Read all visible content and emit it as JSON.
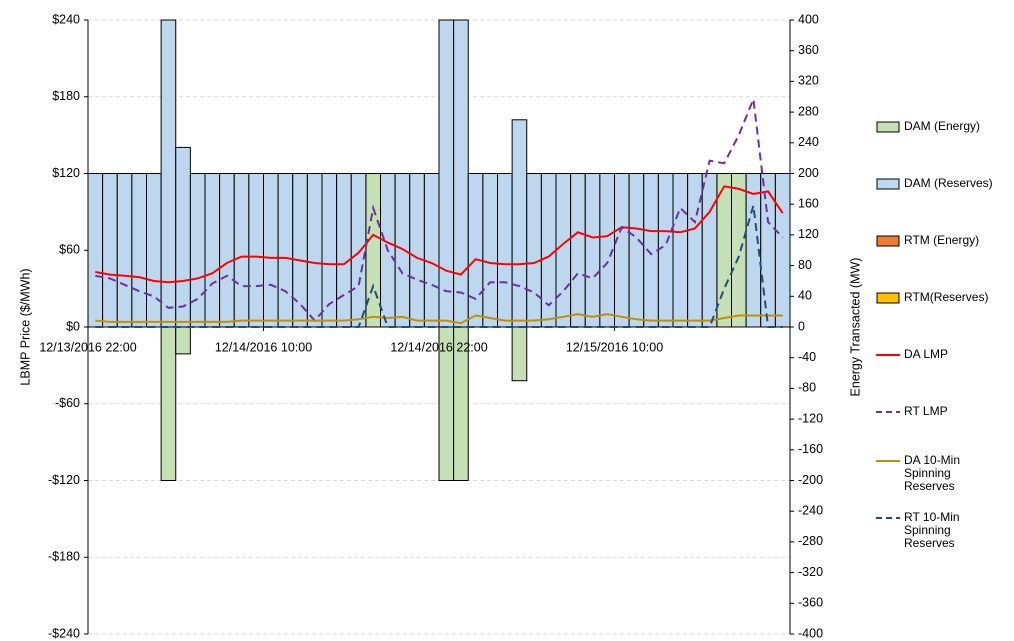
{
  "chart_data": {
    "type": "combo",
    "y_label": "LBMP Price ($/MWh)",
    "y2_label": "Energy Transacted (MW)",
    "categories": [
      "12/13/2016 22:00",
      null,
      null,
      null,
      null,
      null,
      null,
      null,
      null,
      null,
      null,
      null,
      "12/14/2016 10:00",
      null,
      null,
      null,
      null,
      null,
      null,
      null,
      null,
      null,
      null,
      null,
      "12/14/2016 22:00",
      null,
      null,
      null,
      null,
      null,
      null,
      null,
      null,
      null,
      null,
      null,
      "12/15/2016 10:00",
      null,
      null,
      null,
      null,
      null,
      null,
      null,
      null,
      null,
      null,
      null
    ],
    "ylim": [
      -240,
      240
    ],
    "yticks": [
      {
        "value": -240,
        "label": "-$240"
      },
      {
        "value": -180,
        "label": "-$180"
      },
      {
        "value": -120,
        "label": "-$120"
      },
      {
        "value": -60,
        "label": "-$60"
      },
      {
        "value": 0,
        "label": "$0"
      },
      {
        "value": 60,
        "label": "$60"
      },
      {
        "value": 120,
        "label": "$120"
      },
      {
        "value": 180,
        "label": "$180"
      },
      {
        "value": 240,
        "label": "$240"
      }
    ],
    "y2lim": [
      -400,
      400
    ],
    "y2ticks": [
      -400,
      -360,
      -320,
      -280,
      -240,
      -200,
      -160,
      -120,
      -80,
      -40,
      0,
      40,
      80,
      120,
      160,
      200,
      240,
      280,
      320,
      360,
      400
    ],
    "grid": true,
    "series": [
      {
        "name": "DAM (Energy)",
        "type": "bar",
        "axis": "y2",
        "color": "#c5e0b4",
        "values": [
          0,
          0,
          0,
          0,
          0,
          -200,
          -35,
          0,
          0,
          0,
          0,
          0,
          0,
          0,
          0,
          0,
          0,
          0,
          0,
          200,
          0,
          0,
          0,
          0,
          -200,
          -200,
          0,
          0,
          0,
          -70,
          0,
          0,
          0,
          0,
          0,
          0,
          0,
          0,
          0,
          0,
          0,
          0,
          0,
          200,
          200,
          0,
          0,
          0
        ]
      },
      {
        "name": "DAM (Reserves)",
        "type": "bar",
        "axis": "y2",
        "color": "#bdd7ee",
        "values": [
          200,
          200,
          200,
          200,
          200,
          400,
          234,
          200,
          200,
          200,
          200,
          200,
          200,
          200,
          200,
          200,
          200,
          200,
          200,
          0,
          200,
          200,
          200,
          200,
          400,
          400,
          200,
          200,
          200,
          270,
          200,
          200,
          200,
          200,
          200,
          200,
          200,
          200,
          200,
          200,
          200,
          200,
          200,
          0,
          0,
          200,
          200,
          200
        ]
      },
      {
        "name": "RTM (Energy)",
        "type": "bar",
        "axis": "y2",
        "color": "#ed7d31",
        "values": [
          0,
          0,
          0,
          0,
          0,
          0,
          0,
          0,
          0,
          0,
          0,
          0,
          0,
          0,
          0,
          0,
          0,
          0,
          0,
          0,
          0,
          0,
          0,
          0,
          0,
          0,
          0,
          0,
          0,
          0,
          0,
          0,
          0,
          0,
          0,
          0,
          0,
          0,
          0,
          0,
          0,
          0,
          0,
          0,
          0,
          0,
          0,
          0
        ]
      },
      {
        "name": "RTM(Reserves)",
        "type": "bar",
        "axis": "y2",
        "color": "#ffc000",
        "values": [
          0,
          0,
          0,
          0,
          0,
          0,
          0,
          0,
          0,
          0,
          0,
          0,
          0,
          0,
          0,
          0,
          0,
          0,
          0,
          0,
          0,
          0,
          0,
          0,
          0,
          0,
          0,
          0,
          0,
          0,
          0,
          0,
          0,
          0,
          0,
          0,
          0,
          0,
          0,
          0,
          0,
          0,
          0,
          0,
          0,
          0,
          0,
          0
        ]
      },
      {
        "name": "DA LMP",
        "type": "line",
        "color": "#ff0000",
        "dash": false,
        "values": [
          43,
          41,
          40,
          39,
          36,
          35,
          36,
          38,
          42,
          50,
          55,
          55,
          54,
          54,
          52,
          50,
          49,
          49,
          58,
          72,
          66,
          61,
          54,
          50,
          44,
          41,
          53,
          50,
          49,
          49,
          50,
          55,
          65,
          74,
          70,
          71,
          78,
          77,
          75,
          75,
          74,
          77,
          90,
          110,
          108,
          104,
          106,
          89
        ]
      },
      {
        "name": "RT LMP",
        "type": "line",
        "color": "#7030a0",
        "dash": true,
        "values": [
          40,
          38,
          33,
          28,
          24,
          15,
          16,
          22,
          34,
          40,
          32,
          32,
          33,
          28,
          18,
          5,
          18,
          25,
          32,
          93,
          60,
          42,
          37,
          33,
          28,
          27,
          22,
          35,
          35,
          32,
          27,
          17,
          28,
          42,
          38,
          50,
          78,
          70,
          57,
          64,
          93,
          82,
          130,
          128,
          150,
          178,
          82,
          70
        ]
      },
      {
        "name": "DA 10-Min Spinning Reserves",
        "type": "line",
        "color": "#c09000",
        "dash": false,
        "values": [
          5,
          4,
          4,
          4,
          4,
          4,
          4,
          4,
          4,
          4,
          5,
          5,
          5,
          5,
          5,
          5,
          5,
          5,
          6,
          8,
          7,
          8,
          5,
          5,
          5,
          3,
          9,
          7,
          5,
          5,
          5,
          6,
          8,
          10,
          8,
          10,
          8,
          6,
          5,
          5,
          5,
          5,
          5,
          7,
          9,
          9,
          9,
          9
        ]
      },
      {
        "name": "RT 10-Min Spinning Reserves",
        "type": "line",
        "color": "#1f4e79",
        "dash": true,
        "values": [
          0,
          0,
          0,
          0,
          0,
          0,
          0,
          0,
          0,
          0,
          0,
          0,
          0,
          0,
          0,
          0,
          0,
          0,
          0,
          32,
          0,
          0,
          0,
          0,
          0,
          0,
          0,
          0,
          0,
          0,
          0,
          0,
          0,
          0,
          0,
          0,
          0,
          0,
          0,
          0,
          0,
          0,
          0,
          30,
          55,
          95,
          0,
          0
        ]
      }
    ]
  }
}
